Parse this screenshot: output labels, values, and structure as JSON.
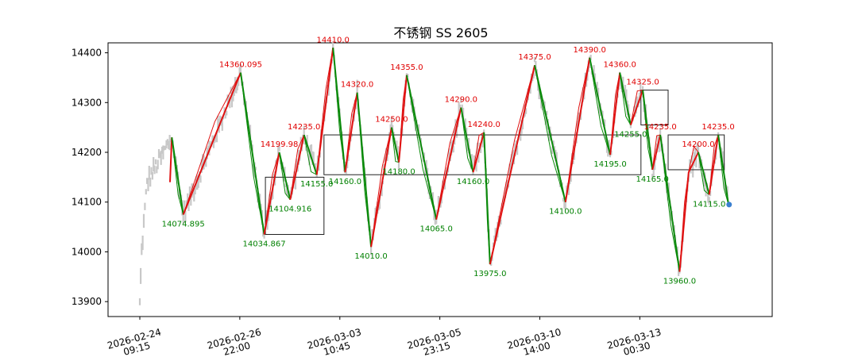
{
  "chart_data": {
    "type": "line",
    "title": "不锈钢 SS 2605",
    "ylim": [
      13870,
      14420
    ],
    "xlim": [
      0,
      100
    ],
    "y_ticks": [
      13900,
      14000,
      14100,
      14200,
      14300,
      14400
    ],
    "x_ticks": [
      {
        "x": 0,
        "line1": "2026-02-24",
        "line2": "09:15"
      },
      {
        "x": 16.56,
        "line1": "2026-02-26",
        "line2": "22:00"
      },
      {
        "x": 33.13,
        "line1": "2026-03-03",
        "line2": "10:45"
      },
      {
        "x": 49.69,
        "line1": "2026-03-05",
        "line2": "23:15"
      },
      {
        "x": 66.25,
        "line1": "2026-03-10",
        "line2": "14:00"
      },
      {
        "x": 82.81,
        "line1": "2026-03-13",
        "line2": "00:30"
      }
    ],
    "zigzag": [
      {
        "x": 5.3,
        "y": 14230,
        "label": "",
        "kind": "peak"
      },
      {
        "x": 7.2,
        "y": 14074.895,
        "label": "14074.895",
        "kind": "trough"
      },
      {
        "x": 16.7,
        "y": 14360.095,
        "label": "14360.095",
        "kind": "peak"
      },
      {
        "x": 20.6,
        "y": 14034.867,
        "label": "14034.867",
        "kind": "trough"
      },
      {
        "x": 23.1,
        "y": 14199.98,
        "label": "14199.98",
        "kind": "peak"
      },
      {
        "x": 24.9,
        "y": 14104.916,
        "label": "14104.916",
        "kind": "trough"
      },
      {
        "x": 27.2,
        "y": 14235.0,
        "label": "14235.0",
        "kind": "peak"
      },
      {
        "x": 29.3,
        "y": 14155.0,
        "label": "14155.0",
        "kind": "trough"
      },
      {
        "x": 32.0,
        "y": 14410.0,
        "label": "14410.0",
        "kind": "peak"
      },
      {
        "x": 34.0,
        "y": 14160.0,
        "label": "14160.0",
        "kind": "trough"
      },
      {
        "x": 36.0,
        "y": 14320.0,
        "label": "14320.0",
        "kind": "peak"
      },
      {
        "x": 38.3,
        "y": 14010.0,
        "label": "14010.0",
        "kind": "trough"
      },
      {
        "x": 41.7,
        "y": 14250.0,
        "label": "14250.0",
        "kind": "peak"
      },
      {
        "x": 42.9,
        "y": 14180.0,
        "label": "14180.0",
        "kind": "trough"
      },
      {
        "x": 44.2,
        "y": 14355.0,
        "label": "14355.0",
        "kind": "peak"
      },
      {
        "x": 49.1,
        "y": 14065.0,
        "label": "14065.0",
        "kind": "trough"
      },
      {
        "x": 53.2,
        "y": 14290.0,
        "label": "14290.0",
        "kind": "peak"
      },
      {
        "x": 55.2,
        "y": 14160.0,
        "label": "14160.0",
        "kind": "trough"
      },
      {
        "x": 57.0,
        "y": 14240.0,
        "label": "14240.0",
        "kind": "peak"
      },
      {
        "x": 58.0,
        "y": 13975.0,
        "label": "13975.0",
        "kind": "trough"
      },
      {
        "x": 65.4,
        "y": 14375.0,
        "label": "14375.0",
        "kind": "peak"
      },
      {
        "x": 70.5,
        "y": 14100.0,
        "label": "14100.0",
        "kind": "trough"
      },
      {
        "x": 74.5,
        "y": 14390.0,
        "label": "14390.0",
        "kind": "peak"
      },
      {
        "x": 77.9,
        "y": 14195.0,
        "label": "14195.0",
        "kind": "trough"
      },
      {
        "x": 79.5,
        "y": 14360.0,
        "label": "14360.0",
        "kind": "peak"
      },
      {
        "x": 81.3,
        "y": 14255.0,
        "label": "14255.0",
        "kind": "trough"
      },
      {
        "x": 83.3,
        "y": 14325.0,
        "label": "14325.0",
        "kind": "peak"
      },
      {
        "x": 84.9,
        "y": 14165.0,
        "label": "14165.0",
        "kind": "trough"
      },
      {
        "x": 86.2,
        "y": 14235.0,
        "label": "14235.0",
        "kind": "peak"
      },
      {
        "x": 89.4,
        "y": 13960.0,
        "label": "13960.0",
        "kind": "trough"
      },
      {
        "x": 90.9,
        "y": 14160.0,
        "label": "",
        "kind": "peak"
      },
      {
        "x": 92.5,
        "y": 14200.0,
        "label": "14200.0",
        "kind": "peak"
      },
      {
        "x": 94.3,
        "y": 14115.0,
        "label": "14115.0",
        "kind": "trough"
      },
      {
        "x": 95.8,
        "y": 14235.0,
        "label": "14235.0",
        "kind": "peak"
      },
      {
        "x": 97.5,
        "y": 14095.0,
        "label": "",
        "kind": "trough"
      }
    ],
    "boxes": [
      {
        "x1": 20.8,
        "x2": 30.5,
        "y1": 14035,
        "y2": 14150
      },
      {
        "x1": 30.5,
        "x2": 83.0,
        "y1": 14155,
        "y2": 14235
      },
      {
        "x1": 83.0,
        "x2": 87.5,
        "y1": 14255,
        "y2": 14325
      },
      {
        "x1": 87.5,
        "x2": 96.8,
        "y1": 14165,
        "y2": 14235
      }
    ],
    "last_point": {
      "x": 97.6,
      "y": 14095
    },
    "colors": {
      "up": "#e01010",
      "down": "#0a8a0a",
      "price": "#c8c8c8",
      "box": "#222222",
      "last_point": "#3a80d0"
    }
  }
}
